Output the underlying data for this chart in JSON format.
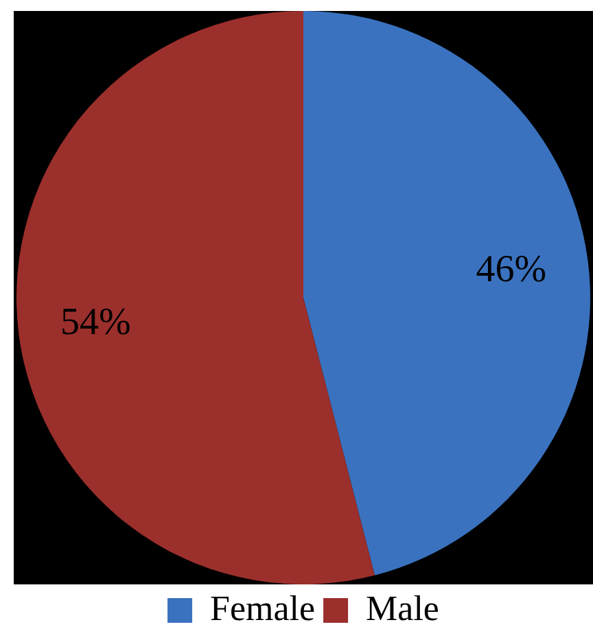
{
  "chart_data": {
    "type": "pie",
    "categories": [
      "Female",
      "Male"
    ],
    "values": [
      46,
      54
    ],
    "colors": [
      "#3a72bf",
      "#9b2f2c"
    ],
    "value_labels": [
      "46%",
      "54%"
    ],
    "legend": "bottom"
  }
}
